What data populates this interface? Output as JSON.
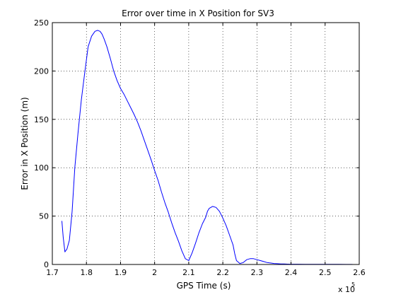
{
  "chart_data": {
    "type": "line",
    "title": "Error over time in X Position for SV3",
    "xlabel": "GPS Time (s)",
    "ylabel": "Error in X Position (m)",
    "x_exponent_label": "x 10",
    "x_exponent_power": "5",
    "xlim": [
      1.7,
      2.6
    ],
    "ylim": [
      0,
      250
    ],
    "xticks": [
      1.7,
      1.8,
      1.9,
      2.0,
      2.1,
      2.2,
      2.3,
      2.4,
      2.5,
      2.6
    ],
    "xtick_labels": [
      "1.7",
      "1.8",
      "1.9",
      "2",
      "2.1",
      "2.2",
      "2.3",
      "2.4",
      "2.5",
      "2.6"
    ],
    "yticks": [
      0,
      50,
      100,
      150,
      200,
      250
    ],
    "ytick_labels": [
      "0",
      "50",
      "100",
      "150",
      "200",
      "250"
    ],
    "grid": true,
    "legend": "none",
    "line_color": "#0000ff",
    "series": [
      {
        "x": [
          1.728,
          1.732,
          1.737,
          1.743,
          1.75,
          1.758,
          1.766,
          1.775,
          1.785,
          1.795,
          1.805,
          1.815,
          1.825,
          1.833,
          1.84,
          1.846,
          1.852,
          1.86,
          1.87,
          1.88,
          1.89,
          1.9,
          1.91,
          1.92,
          1.93,
          1.94,
          1.95,
          1.96,
          1.97,
          1.98,
          1.99,
          2.0,
          2.01,
          2.02,
          2.03,
          2.04,
          2.05,
          2.06,
          2.07,
          2.08,
          2.09,
          2.1,
          2.11,
          2.12,
          2.13,
          2.14,
          2.15,
          2.155,
          2.16,
          2.17,
          2.18,
          2.19,
          2.2,
          2.21,
          2.22,
          2.23,
          2.235,
          2.24,
          2.25,
          2.26,
          2.27,
          2.28,
          2.29,
          2.3,
          2.31,
          2.32,
          2.33,
          2.34,
          2.35,
          2.36,
          2.37,
          2.38,
          2.39,
          2.4,
          2.42,
          2.44,
          2.46,
          2.48,
          2.5,
          2.52,
          2.54,
          2.56,
          2.575,
          2.58
        ],
        "y": [
          45,
          28,
          13,
          16,
          25,
          55,
          100,
          135,
          170,
          198,
          225,
          236,
          241,
          242,
          241,
          238,
          233,
          225,
          213,
          200,
          190,
          182,
          176,
          169,
          162,
          155,
          147,
          138,
          128,
          118,
          108,
          97,
          87,
          75,
          64,
          54,
          43,
          33,
          24,
          14,
          6,
          4,
          12,
          22,
          33,
          42,
          49,
          55,
          58,
          60,
          59,
          55,
          48,
          40,
          30,
          20,
          11,
          4,
          1,
          2,
          5,
          6,
          6,
          5,
          4,
          3,
          2,
          1.5,
          1,
          0.8,
          0.6,
          0.5,
          0.4,
          0.3,
          0.3,
          0.2,
          0.2,
          0.2,
          0.2,
          0.2,
          0.2,
          0.1,
          0.1,
          0.1
        ]
      }
    ]
  }
}
